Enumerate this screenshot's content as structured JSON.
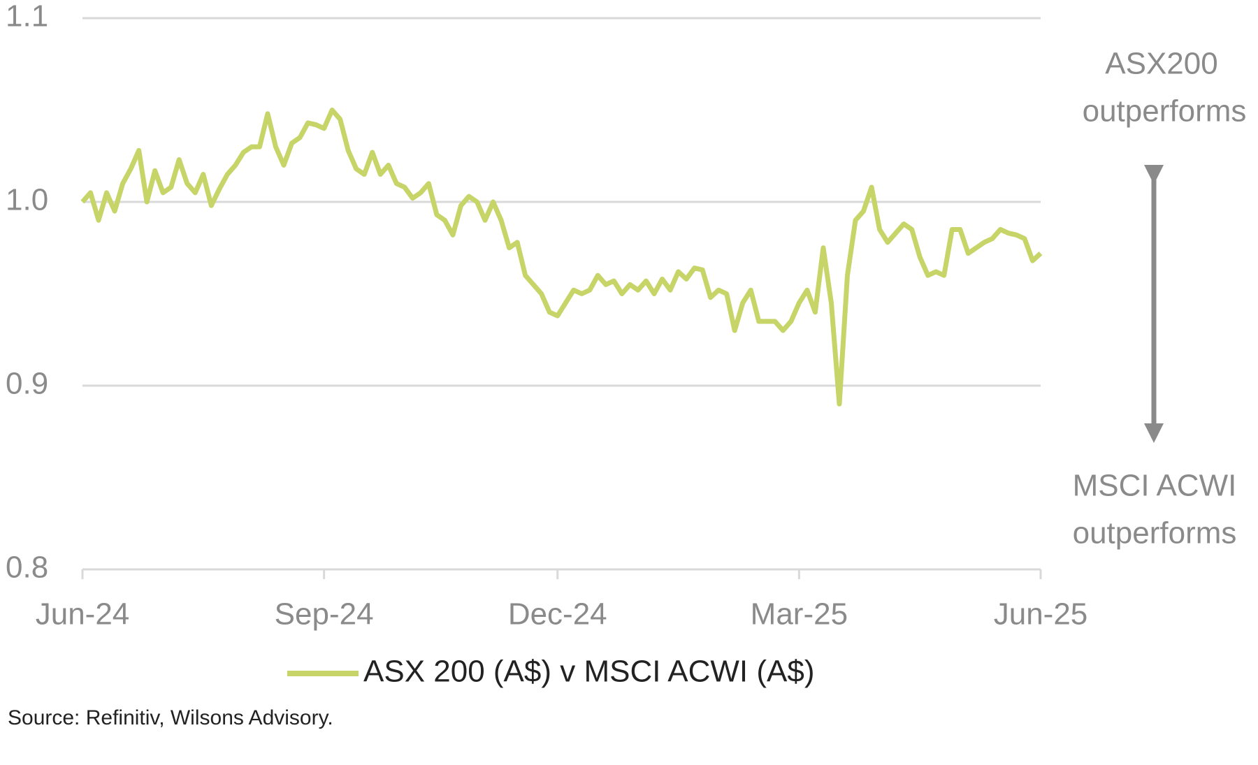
{
  "chart_data": {
    "type": "line",
    "categories": [
      "Jun-24",
      null,
      null,
      null,
      null,
      null,
      null,
      null,
      null,
      null,
      null,
      null,
      null,
      null,
      null,
      null,
      null,
      null,
      null,
      null,
      null,
      null,
      null,
      null,
      null,
      null,
      null,
      null,
      null,
      null,
      "Sep-24",
      null,
      null,
      null,
      null,
      null,
      null,
      null,
      null,
      null,
      null,
      null,
      null,
      null,
      null,
      null,
      null,
      null,
      null,
      null,
      null,
      null,
      null,
      null,
      null,
      null,
      null,
      null,
      null,
      "Dec-24",
      null,
      null,
      null,
      null,
      null,
      null,
      null,
      null,
      null,
      null,
      null,
      null,
      null,
      null,
      null,
      null,
      null,
      null,
      null,
      null,
      null,
      null,
      null,
      null,
      null,
      null,
      null,
      null,
      null,
      "Mar-25",
      null,
      null,
      null,
      null,
      null,
      null,
      null,
      null,
      null,
      null,
      null,
      null,
      null,
      null,
      null,
      null,
      null,
      null,
      null,
      null,
      null,
      null,
      null,
      null,
      null,
      null,
      null,
      null,
      null,
      "Jun-25"
    ],
    "series": [
      {
        "name": "ASX 200 (A$) v MSCI ACWI (A$)",
        "color": "#c6d468",
        "values": [
          1.0,
          1.005,
          0.99,
          1.005,
          0.995,
          1.01,
          1.018,
          1.028,
          1.0,
          1.017,
          1.005,
          1.008,
          1.023,
          1.01,
          1.005,
          1.015,
          0.998,
          1.007,
          1.015,
          1.02,
          1.027,
          1.03,
          1.03,
          1.048,
          1.03,
          1.02,
          1.032,
          1.035,
          1.043,
          1.042,
          1.04,
          1.05,
          1.045,
          1.028,
          1.018,
          1.015,
          1.027,
          1.015,
          1.02,
          1.01,
          1.008,
          1.002,
          1.005,
          1.01,
          0.993,
          0.99,
          0.982,
          0.998,
          1.003,
          1.0,
          0.99,
          1.0,
          0.99,
          0.975,
          0.978,
          0.96,
          0.955,
          0.95,
          0.94,
          0.938,
          0.945,
          0.952,
          0.95,
          0.952,
          0.96,
          0.955,
          0.957,
          0.95,
          0.955,
          0.952,
          0.957,
          0.95,
          0.958,
          0.952,
          0.962,
          0.958,
          0.964,
          0.963,
          0.948,
          0.952,
          0.95,
          0.93,
          0.945,
          0.952,
          0.935,
          0.935,
          0.935,
          0.93,
          0.935,
          0.945,
          0.952,
          0.94,
          0.975,
          0.945,
          0.89,
          0.96,
          0.99,
          0.995,
          1.008,
          0.985,
          0.978,
          0.983,
          0.988,
          0.985,
          0.97,
          0.96,
          0.962,
          0.96,
          0.985,
          0.985,
          0.972,
          0.975,
          0.978,
          0.98,
          0.985,
          0.983,
          0.982,
          0.98,
          0.968,
          0.972
        ]
      }
    ],
    "ylim": [
      0.8,
      1.1
    ],
    "yticks": [
      0.8,
      0.9,
      {
        "value": 1,
        "label": "1.0"
      },
      1.1
    ],
    "grid": true,
    "annotations": [
      [
        "ASX200",
        "outperforms"
      ],
      [
        "MSCI ACWI",
        "outperforms"
      ]
    ],
    "source": "Source: Refinitiv, Wilsons Advisory."
  }
}
